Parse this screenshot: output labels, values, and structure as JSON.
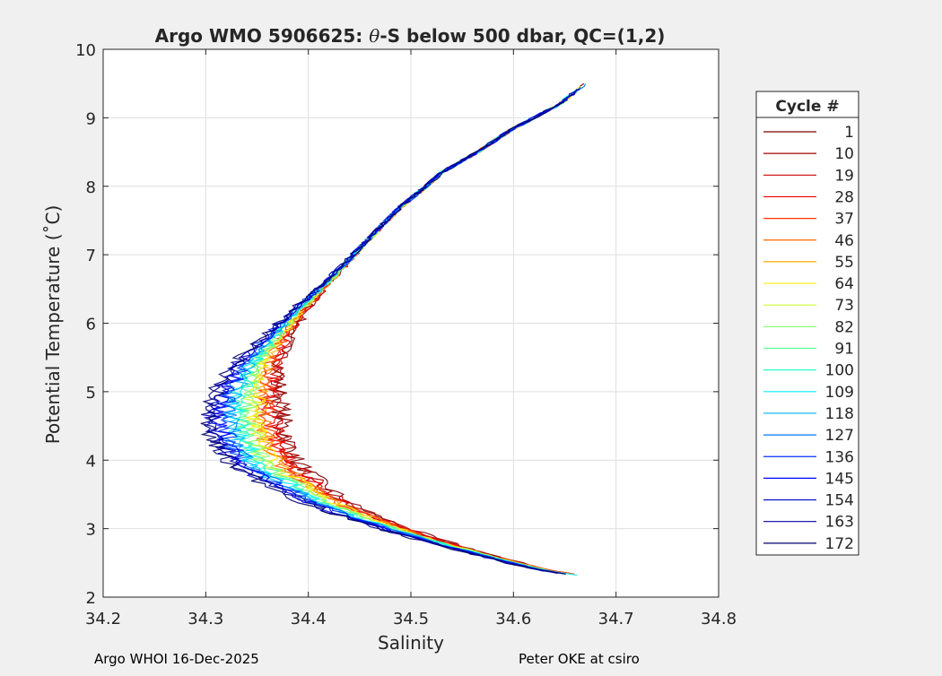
{
  "chart_data": {
    "type": "line",
    "title_prefix": "Argo WMO 5906625: ",
    "title_symbol": "θ",
    "title_suffix": "-S below 500 dbar,  QC=(1,2)",
    "xlabel": "Salinity",
    "ylabel": "Potential Temperature (˚C)",
    "xlim": [
      34.2,
      34.8
    ],
    "ylim": [
      2,
      10
    ],
    "xticks": [
      34.2,
      34.3,
      34.4,
      34.5,
      34.6,
      34.7,
      34.8
    ],
    "xtick_labels": [
      "34.2",
      "34.3",
      "34.4",
      "34.5",
      "34.6",
      "34.7",
      "34.8"
    ],
    "yticks": [
      2,
      3,
      4,
      5,
      6,
      7,
      8,
      9,
      10
    ],
    "ytick_labels": [
      "2",
      "3",
      "4",
      "5",
      "6",
      "7",
      "8",
      "9",
      "10"
    ],
    "grid": true,
    "legend_title": "Cycle #",
    "legend_position": "right-outside",
    "legend_entries": [
      {
        "label": "1",
        "color": "#800000"
      },
      {
        "label": "10",
        "color": "#a60000"
      },
      {
        "label": "19",
        "color": "#cc0000"
      },
      {
        "label": "28",
        "color": "#f20000"
      },
      {
        "label": "37",
        "color": "#ff3300"
      },
      {
        "label": "46",
        "color": "#ff6600"
      },
      {
        "label": "55",
        "color": "#ffaa00"
      },
      {
        "label": "64",
        "color": "#ffee00"
      },
      {
        "label": "73",
        "color": "#ccff33"
      },
      {
        "label": "82",
        "color": "#88ff77"
      },
      {
        "label": "91",
        "color": "#55ff99"
      },
      {
        "label": "100",
        "color": "#22ffcc"
      },
      {
        "label": "109",
        "color": "#00eeff"
      },
      {
        "label": "118",
        "color": "#00b0ff"
      },
      {
        "label": "127",
        "color": "#0077ff"
      },
      {
        "label": "136",
        "color": "#0033ff"
      },
      {
        "label": "145",
        "color": "#0000ff"
      },
      {
        "label": "154",
        "color": "#0000cc"
      },
      {
        "label": "163",
        "color": "#000099"
      },
      {
        "label": "172",
        "color": "#000070"
      }
    ],
    "reference_profile": {
      "temperature": [
        9.5,
        9.2,
        9.0,
        8.8,
        8.5,
        8.2,
        8.0,
        7.7,
        7.4,
        7.0,
        6.6,
        6.2,
        5.8,
        5.4,
        5.0,
        4.6,
        4.3,
        4.0,
        3.8,
        3.6,
        3.4,
        3.2,
        3.0,
        2.85,
        2.7,
        2.55,
        2.4,
        2.3
      ],
      "salinity": [
        34.67,
        34.645,
        34.62,
        34.595,
        34.565,
        34.53,
        34.515,
        34.49,
        34.47,
        34.445,
        34.42,
        34.395,
        34.375,
        34.36,
        34.355,
        34.355,
        34.36,
        34.37,
        34.385,
        34.405,
        34.425,
        34.455,
        34.49,
        34.52,
        34.555,
        34.59,
        34.63,
        34.67
      ]
    },
    "spread": {
      "cold_shift": -0.055,
      "warm_shift": 0.02,
      "noise_max": 0.015
    }
  },
  "footer": {
    "left": "Argo WHOI 16-Dec-2025",
    "right": "Peter OKE at csiro"
  }
}
